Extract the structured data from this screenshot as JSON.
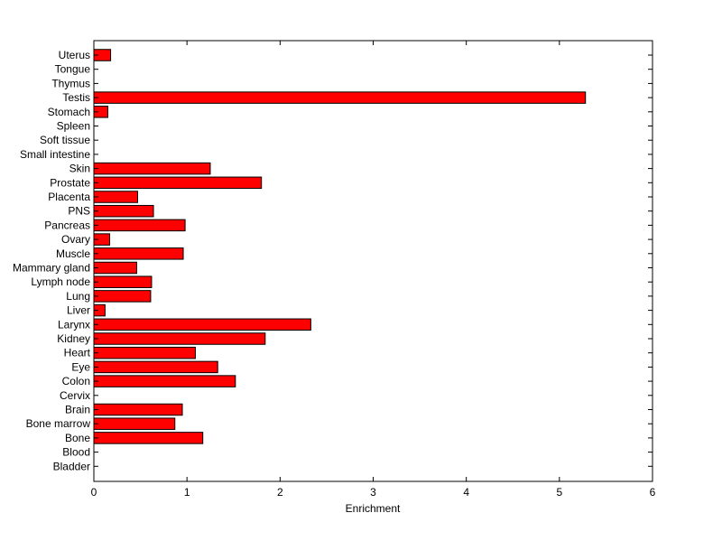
{
  "chart_data": {
    "type": "bar",
    "orientation": "horizontal",
    "title": "",
    "xlabel": "Enrichment",
    "ylabel": "",
    "xlim": [
      0,
      6
    ],
    "xticks": [
      "0",
      "1",
      "2",
      "3",
      "4",
      "5",
      "6"
    ],
    "grid": false,
    "legend": "none",
    "bar_color": "#ff0000",
    "edge_color": "#000000",
    "categories": [
      "Uterus",
      "Tongue",
      "Thymus",
      "Testis",
      "Stomach",
      "Spleen",
      "Soft tissue",
      "Small intestine",
      "Skin",
      "Prostate",
      "Placenta",
      "PNS",
      "Pancreas",
      "Ovary",
      "Muscle",
      "Mammary gland",
      "Lymph node",
      "Lung",
      "Liver",
      "Larynx",
      "Kidney",
      "Heart",
      "Eye",
      "Colon",
      "Cervix",
      "Brain",
      "Bone marrow",
      "Bone",
      "Blood",
      "Bladder"
    ],
    "values": [
      0.18,
      0,
      0,
      5.28,
      0.15,
      0,
      0,
      0,
      1.25,
      1.8,
      0.47,
      0.64,
      0.98,
      0.17,
      0.96,
      0.46,
      0.62,
      0.61,
      0.12,
      2.33,
      1.84,
      1.09,
      1.33,
      1.52,
      0,
      0.95,
      0.87,
      1.17,
      0,
      0
    ]
  }
}
